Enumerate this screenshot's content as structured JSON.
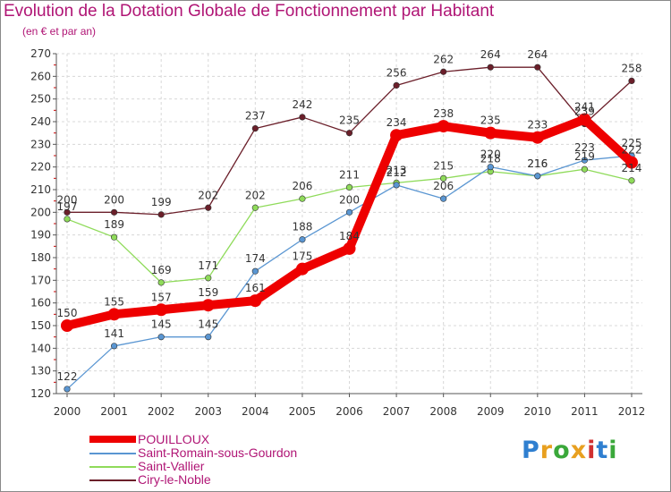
{
  "title": "Evolution de la Dotation Globale de Fonctionnement par Habitant",
  "subtitle": "(en € et par an)",
  "logo": {
    "text": "Proxiti",
    "letters": [
      "P",
      "r",
      "o",
      "x",
      "i",
      "t",
      "i"
    ],
    "colors": [
      "#2f7fd0",
      "#e8a020",
      "#3aa83a",
      "#e8a020",
      "#d03030",
      "#2f7fd0",
      "#3aa83a"
    ]
  },
  "chart_data": {
    "type": "line",
    "title": "Evolution de la Dotation Globale de Fonctionnement par Habitant",
    "subtitle": "(en € et par an)",
    "xlabel": "",
    "ylabel": "",
    "ylim": [
      120,
      270
    ],
    "y_ticks": [
      120,
      130,
      140,
      150,
      160,
      170,
      180,
      190,
      200,
      210,
      220,
      230,
      240,
      250,
      260,
      270
    ],
    "x": [
      "2000",
      "2001",
      "2002",
      "2003",
      "2004",
      "2005",
      "2006",
      "2007",
      "2008",
      "2009",
      "2010",
      "2011",
      "2012"
    ],
    "grid": true,
    "legend_position": "bottom-left",
    "series": [
      {
        "name": "Ciry-le-Noble",
        "color": "#6b1f2a",
        "style": "thin",
        "values": [
          200,
          200,
          199,
          202,
          237,
          242,
          235,
          256,
          262,
          264,
          264,
          239,
          258
        ]
      },
      {
        "name": "Saint-Vallier",
        "color": "#8fdb5a",
        "style": "thin",
        "values": [
          197,
          189,
          169,
          171,
          202,
          206,
          211,
          213,
          215,
          218,
          216,
          219,
          214
        ]
      },
      {
        "name": "Saint-Romain-sous-Gourdon",
        "color": "#5a96d2",
        "style": "thin",
        "values": [
          122,
          141,
          145,
          145,
          174,
          188,
          200,
          212,
          206,
          220,
          216,
          223,
          225
        ]
      },
      {
        "name": "POUILLOUX",
        "color": "#ee0000",
        "style": "thick",
        "values": [
          150,
          155,
          157,
          159,
          161,
          175,
          184,
          234,
          238,
          235,
          233,
          241,
          222
        ]
      }
    ],
    "legend": [
      "POUILLOUX",
      "Saint-Romain-sous-Gourdon",
      "Saint-Vallier",
      "Ciry-le-Noble"
    ]
  }
}
